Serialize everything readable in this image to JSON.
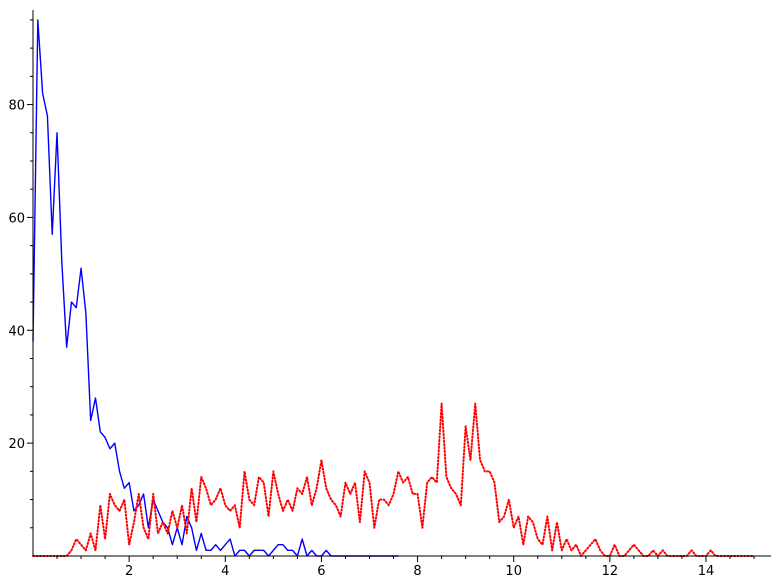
{
  "chart_data": {
    "type": "line",
    "title": "",
    "xlabel": "",
    "ylabel": "",
    "xlim": [
      0,
      15.2
    ],
    "ylim": [
      0,
      95
    ],
    "grid": false,
    "legend": "none",
    "x_ticks": [
      2,
      4,
      6,
      8,
      10,
      12,
      14
    ],
    "y_ticks": [
      20,
      40,
      60,
      80
    ],
    "x_tick_labels": [
      "2",
      "4",
      "6",
      "8",
      "10",
      "12",
      "14"
    ],
    "y_tick_labels": [
      "20",
      "40",
      "60",
      "80"
    ],
    "series": [
      {
        "color": "#0000ff",
        "style": "solid",
        "x": [
          0,
          0.1,
          0.2,
          0.3,
          0.4,
          0.5,
          0.6,
          0.7,
          0.8,
          0.9,
          1.0,
          1.1,
          1.2,
          1.3,
          1.4,
          1.5,
          1.6,
          1.7,
          1.8,
          1.9,
          2.0,
          2.1,
          2.2,
          2.3,
          2.4,
          2.5,
          2.6,
          2.7,
          2.8,
          2.9,
          3.0,
          3.1,
          3.2,
          3.3,
          3.4,
          3.5,
          3.6,
          3.7,
          3.8,
          3.9,
          4.0,
          4.1,
          4.2,
          4.3,
          4.4,
          4.5,
          4.6,
          4.7,
          4.8,
          4.9,
          5.0,
          5.1,
          5.2,
          5.3,
          5.4,
          5.5,
          5.6,
          5.7,
          5.8,
          5.9,
          6.0,
          6.1,
          6.2,
          6.3,
          7.6
        ],
        "y": [
          38,
          95,
          82,
          78,
          57,
          75,
          52,
          37,
          45,
          44,
          51,
          43,
          24,
          28,
          22,
          21,
          19,
          20,
          15,
          12,
          13,
          8,
          9,
          11,
          5,
          10,
          8,
          6,
          5,
          2,
          5,
          2,
          7,
          5,
          1,
          4,
          1,
          1,
          2,
          1,
          2,
          3,
          0,
          1,
          1,
          0,
          1,
          1,
          1,
          0,
          1,
          2,
          2,
          1,
          1,
          0,
          3,
          0,
          1,
          0,
          0,
          1,
          0,
          0,
          0
        ]
      },
      {
        "color": "#ff0000",
        "style": "dotted",
        "x": [
          0,
          0.1,
          0.2,
          0.3,
          0.4,
          0.5,
          0.6,
          0.7,
          0.8,
          0.9,
          1.0,
          1.1,
          1.2,
          1.3,
          1.4,
          1.5,
          1.6,
          1.7,
          1.8,
          1.9,
          2.0,
          2.1,
          2.2,
          2.3,
          2.4,
          2.5,
          2.6,
          2.7,
          2.8,
          2.9,
          3.0,
          3.1,
          3.2,
          3.3,
          3.4,
          3.5,
          3.6,
          3.7,
          3.8,
          3.9,
          4.0,
          4.1,
          4.2,
          4.3,
          4.4,
          4.5,
          4.6,
          4.7,
          4.8,
          4.9,
          5.0,
          5.1,
          5.2,
          5.3,
          5.4,
          5.5,
          5.6,
          5.7,
          5.8,
          5.9,
          6.0,
          6.1,
          6.2,
          6.3,
          6.4,
          6.5,
          6.6,
          6.7,
          6.8,
          6.9,
          7.0,
          7.1,
          7.2,
          7.3,
          7.4,
          7.5,
          7.6,
          7.7,
          7.8,
          7.9,
          8.0,
          8.1,
          8.2,
          8.3,
          8.4,
          8.5,
          8.6,
          8.7,
          8.8,
          8.9,
          9.0,
          9.1,
          9.2,
          9.3,
          9.4,
          9.5,
          9.6,
          9.7,
          9.8,
          9.9,
          10.0,
          10.1,
          10.2,
          10.3,
          10.4,
          10.5,
          10.6,
          10.7,
          10.8,
          10.9,
          11.0,
          11.1,
          11.2,
          11.3,
          11.4,
          11.5,
          11.6,
          11.7,
          11.8,
          11.9,
          12.0,
          12.1,
          12.2,
          12.3,
          12.4,
          12.5,
          12.6,
          12.7,
          12.8,
          12.9,
          13.0,
          13.1,
          13.2,
          13.3,
          13.4,
          13.5,
          13.6,
          13.7,
          13.8,
          13.9,
          14.0,
          14.1,
          14.2,
          14.3,
          14.4,
          14.5,
          14.6,
          14.7,
          14.8,
          14.9,
          15.0
        ],
        "y": [
          0,
          0,
          0,
          0,
          0,
          0,
          0,
          0,
          1,
          3,
          2,
          1,
          4,
          1,
          9,
          3,
          11,
          9,
          8,
          10,
          2,
          6,
          11,
          5,
          3,
          11,
          4,
          6,
          4,
          8,
          5,
          9,
          4,
          12,
          6,
          14,
          12,
          9,
          10,
          12,
          9,
          8,
          9,
          5,
          15,
          10,
          9,
          14,
          13,
          7,
          15,
          11,
          8,
          10,
          8,
          12,
          11,
          14,
          9,
          12,
          17,
          12,
          10,
          9,
          7,
          13,
          11,
          13,
          6,
          15,
          13,
          5,
          10,
          10,
          9,
          11,
          15,
          13,
          14,
          11,
          11,
          5,
          13,
          14,
          13,
          27,
          14,
          12,
          11,
          9,
          23,
          17,
          27,
          17,
          15,
          15,
          13,
          6,
          7,
          10,
          5,
          7,
          2,
          7,
          6,
          3,
          2,
          7,
          1,
          6,
          1,
          3,
          1,
          2,
          0,
          1,
          2,
          3,
          1,
          0,
          0,
          2,
          0,
          0,
          1,
          2,
          1,
          0,
          0,
          1,
          0,
          1,
          0,
          0,
          0,
          0,
          0,
          1,
          0,
          0,
          0,
          1,
          0,
          0,
          0,
          0,
          0,
          0,
          0,
          0,
          0
        ]
      }
    ]
  }
}
